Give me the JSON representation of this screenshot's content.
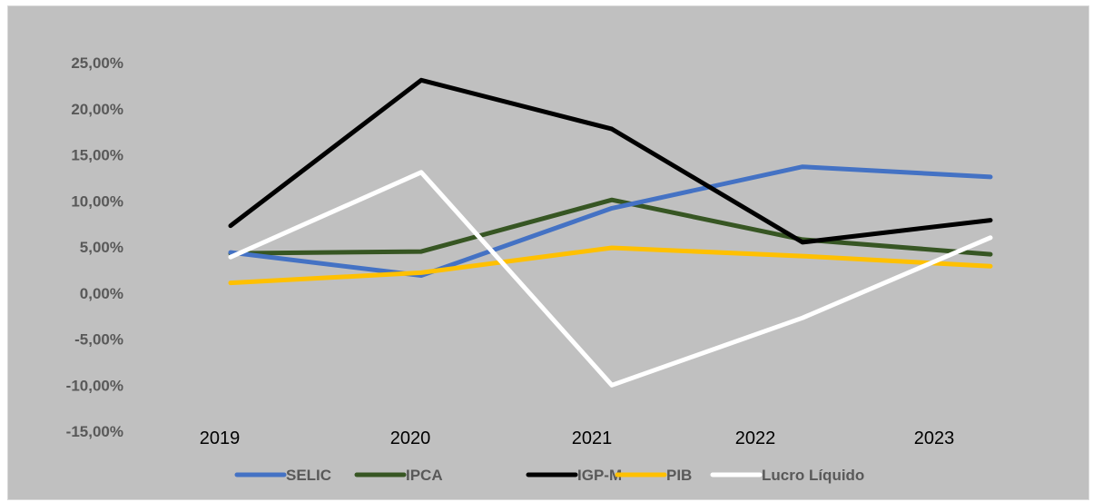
{
  "chart_data": {
    "type": "line",
    "categories": [
      "2019",
      "2020",
      "2021",
      "2022",
      "2023"
    ],
    "y_ticks": [
      "25,00%",
      "20,00%",
      "15,00%",
      "10,00%",
      "5,00%",
      "0,00%",
      "-5,00%",
      "-10,00%",
      "-15,00%"
    ],
    "ylim": [
      -15,
      25
    ],
    "grid": false,
    "legend_position": "bottom",
    "series": [
      {
        "name": "SELIC",
        "color": "#4472c4",
        "values": [
          4.4,
          1.9,
          9.2,
          13.7,
          12.6
        ]
      },
      {
        "name": "IPCA",
        "color": "#375623",
        "values": [
          4.3,
          4.5,
          10.1,
          5.8,
          4.2
        ]
      },
      {
        "name": "IGP-M",
        "color": "#000000",
        "values": [
          7.3,
          23.1,
          17.8,
          5.5,
          7.9
        ]
      },
      {
        "name": "PIB",
        "color": "#ffc000",
        "values": [
          1.1,
          2.2,
          4.9,
          4.0,
          2.9
        ]
      },
      {
        "name": "Lucro Líquido",
        "color": "#ffffff",
        "values": [
          3.9,
          13.1,
          -10.0,
          -2.7,
          6.0
        ]
      }
    ]
  }
}
